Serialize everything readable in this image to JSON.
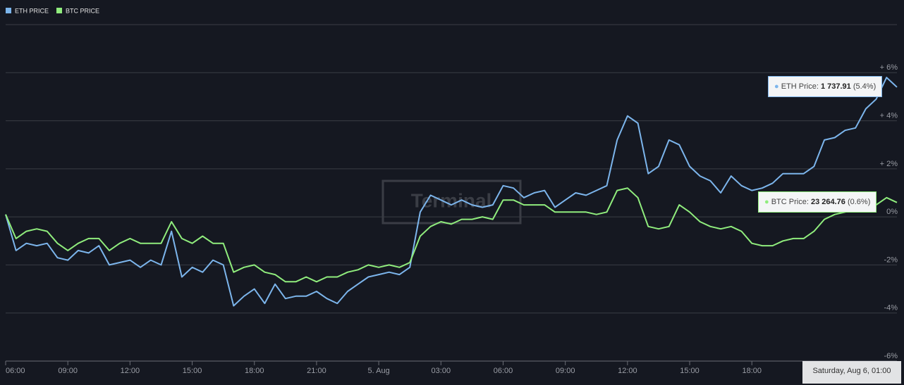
{
  "chart_data": {
    "type": "line",
    "watermark": "Terminal",
    "x": [
      6,
      6.5,
      7,
      7.5,
      8,
      8.5,
      9,
      9.5,
      10,
      10.5,
      11,
      11.5,
      12,
      12.5,
      13,
      13.5,
      14,
      14.5,
      15,
      15.5,
      16,
      16.5,
      17,
      17.5,
      18,
      18.5,
      19,
      19.5,
      20,
      20.5,
      21,
      21.5,
      22,
      22.5,
      23,
      23.5,
      24,
      24.5,
      25,
      25.5,
      26,
      26.5,
      27,
      27.5,
      28,
      28.5,
      29,
      29.5,
      30,
      30.5,
      31,
      31.5,
      32,
      32.5,
      33,
      33.5,
      34,
      34.5,
      35,
      35.5,
      36,
      36.5,
      37,
      37.5,
      38,
      38.5,
      39,
      39.5,
      40,
      40.5,
      41,
      41.5,
      42,
      42.5,
      43,
      43.5,
      44,
      44.5,
      45,
      45.5,
      46,
      46.5,
      47,
      47.5,
      48,
      48.5,
      49
    ],
    "series": [
      {
        "name": "ETH PRICE",
        "color": "#7cb5ec",
        "values": [
          0.1,
          -1.4,
          -1.1,
          -1.2,
          -1.1,
          -1.7,
          -1.8,
          -1.4,
          -1.5,
          -1.2,
          -2.0,
          -1.9,
          -1.8,
          -2.1,
          -1.8,
          -2.0,
          -0.6,
          -2.5,
          -2.1,
          -2.3,
          -1.8,
          -2.0,
          -3.7,
          -3.3,
          -3.0,
          -3.6,
          -2.8,
          -3.4,
          -3.3,
          -3.3,
          -3.1,
          -3.4,
          -3.6,
          -3.1,
          -2.8,
          -2.5,
          -2.4,
          -2.3,
          -2.4,
          -2.1,
          0.2,
          0.9,
          0.7,
          0.5,
          0.7,
          0.5,
          0.4,
          0.5,
          1.3,
          1.2,
          0.8,
          1.0,
          1.1,
          0.4,
          0.7,
          1.0,
          0.9,
          1.1,
          1.3,
          3.2,
          4.2,
          3.9,
          1.8,
          2.1,
          3.2,
          3.0,
          2.1,
          1.7,
          1.5,
          1.0,
          1.7,
          1.3,
          1.1,
          1.2,
          1.4,
          1.8,
          1.8,
          1.8,
          2.1,
          3.2,
          3.3,
          3.6,
          3.7,
          4.5,
          4.9,
          5.8,
          5.4
        ]
      },
      {
        "name": "BTC PRICE",
        "color": "#90ed7d",
        "values": [
          0.1,
          -0.9,
          -0.6,
          -0.5,
          -0.6,
          -1.1,
          -1.4,
          -1.1,
          -0.9,
          -0.9,
          -1.4,
          -1.1,
          -0.9,
          -1.1,
          -1.1,
          -1.1,
          -0.2,
          -0.9,
          -1.1,
          -0.8,
          -1.1,
          -1.1,
          -2.3,
          -2.1,
          -2.0,
          -2.3,
          -2.4,
          -2.7,
          -2.7,
          -2.5,
          -2.7,
          -2.5,
          -2.5,
          -2.3,
          -2.2,
          -2.0,
          -2.1,
          -2.0,
          -2.1,
          -1.9,
          -0.8,
          -0.4,
          -0.2,
          -0.3,
          -0.1,
          -0.1,
          0.0,
          -0.1,
          0.7,
          0.7,
          0.5,
          0.5,
          0.5,
          0.2,
          0.2,
          0.2,
          0.2,
          0.1,
          0.2,
          1.1,
          1.2,
          0.8,
          -0.4,
          -0.5,
          -0.4,
          0.5,
          0.2,
          -0.2,
          -0.4,
          -0.5,
          -0.4,
          -0.6,
          -1.1,
          -1.2,
          -1.2,
          -1.0,
          -0.9,
          -0.9,
          -0.6,
          -0.1,
          0.1,
          0.2,
          0.3,
          0.5,
          0.5,
          0.8,
          0.6
        ]
      }
    ],
    "xlim": [
      6,
      49
    ],
    "xticks": [
      {
        "value": 6,
        "label": "06:00"
      },
      {
        "value": 9,
        "label": "09:00"
      },
      {
        "value": 12,
        "label": "12:00"
      },
      {
        "value": 15,
        "label": "15:00"
      },
      {
        "value": 18,
        "label": "18:00"
      },
      {
        "value": 21,
        "label": "21:00"
      },
      {
        "value": 24,
        "label": "5. Aug"
      },
      {
        "value": 27,
        "label": "03:00"
      },
      {
        "value": 30,
        "label": "06:00"
      },
      {
        "value": 33,
        "label": "09:00"
      },
      {
        "value": 36,
        "label": "12:00"
      },
      {
        "value": 39,
        "label": "15:00"
      },
      {
        "value": 42,
        "label": "18:00"
      }
    ],
    "ylim": [
      -6,
      8
    ],
    "yticks": [
      {
        "value": 6,
        "label": "+ 6%"
      },
      {
        "value": 4,
        "label": "+ 4%"
      },
      {
        "value": 2,
        "label": "+ 2%"
      },
      {
        "value": 0,
        "label": "0%"
      },
      {
        "value": -2,
        "label": "-2%"
      },
      {
        "value": -4,
        "label": "-4%"
      },
      {
        "value": -6,
        "label": "-6%"
      }
    ],
    "grid": true,
    "tooltips": [
      {
        "label": "ETH Price:",
        "value": "1 737.91",
        "change": "(5.4%)"
      },
      {
        "label": "BTC Price:",
        "value": "23 264.76",
        "change": "(0.6%)"
      }
    ],
    "date_label": "Saturday, Aug 6, 01:00"
  }
}
